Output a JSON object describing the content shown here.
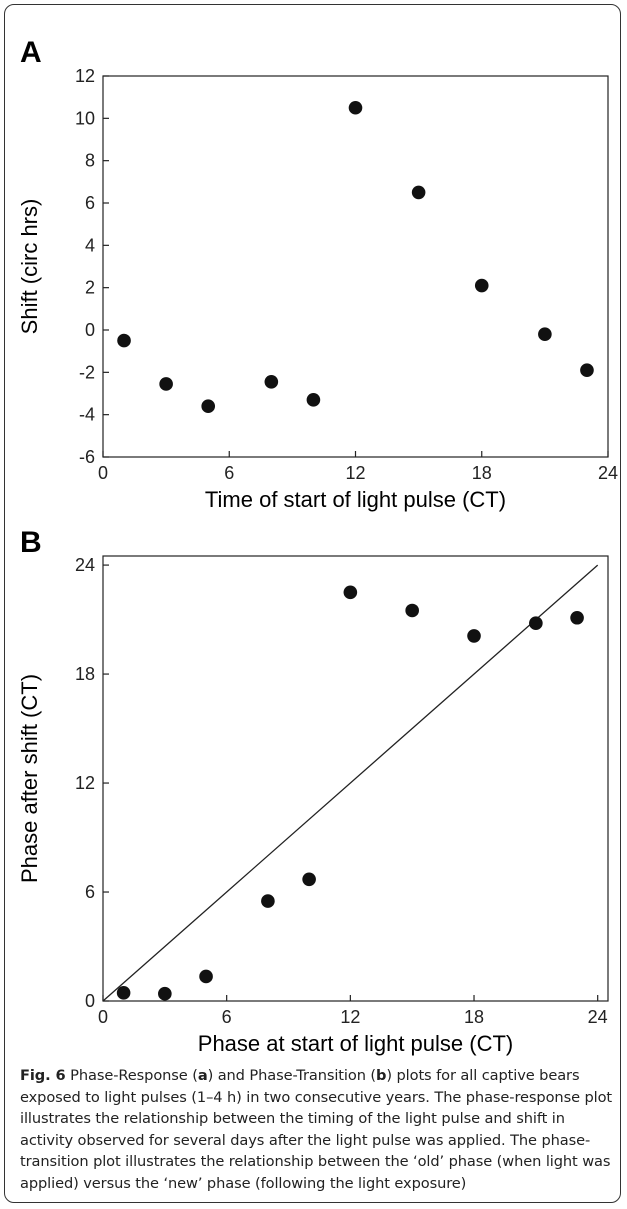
{
  "chart_data": [
    {
      "panel_label": "A",
      "type": "scatter",
      "xlabel": "Time of start of light pulse (CT)",
      "ylabel": "Shift (circ hrs)",
      "xlim": [
        0,
        24
      ],
      "ylim": [
        -6,
        12
      ],
      "xticks": [
        "0",
        "6",
        "12",
        "18",
        "24"
      ],
      "yticks": [
        "-6",
        "-4",
        "-2",
        "0",
        "2",
        "4",
        "6",
        "8",
        "10",
        "12"
      ],
      "grid": false,
      "points": [
        {
          "x": 1,
          "y": -0.5
        },
        {
          "x": 3,
          "y": -2.55
        },
        {
          "x": 5,
          "y": -3.6
        },
        {
          "x": 8,
          "y": -2.45
        },
        {
          "x": 10,
          "y": -3.3
        },
        {
          "x": 12,
          "y": 10.5
        },
        {
          "x": 15,
          "y": 6.5
        },
        {
          "x": 18,
          "y": 2.1
        },
        {
          "x": 21,
          "y": -0.2
        },
        {
          "x": 23,
          "y": -1.9
        }
      ]
    },
    {
      "panel_label": "B",
      "type": "scatter",
      "xlabel": "Phase at start of light pulse (CT)",
      "ylabel": "Phase after shift (CT)",
      "xlim": [
        0,
        24.5
      ],
      "ylim": [
        0,
        24.5
      ],
      "xticks": [
        "0",
        "6",
        "12",
        "18",
        "24"
      ],
      "yticks": [
        "0",
        "6",
        "12",
        "18",
        "24"
      ],
      "grid": false,
      "reference_line": {
        "from": [
          0,
          0
        ],
        "to": [
          24,
          24
        ]
      },
      "points": [
        {
          "x": 1,
          "y": 0.45
        },
        {
          "x": 3,
          "y": 0.4
        },
        {
          "x": 5,
          "y": 1.35
        },
        {
          "x": 8,
          "y": 5.5
        },
        {
          "x": 10,
          "y": 6.7
        },
        {
          "x": 12,
          "y": 22.5
        },
        {
          "x": 15,
          "y": 21.5
        },
        {
          "x": 18,
          "y": 20.1
        },
        {
          "x": 21,
          "y": 20.8
        },
        {
          "x": 23,
          "y": 21.1
        }
      ]
    }
  ],
  "caption": {
    "fig_label": "Fig. 6",
    "part1": " Phase-Response (",
    "ref_a": "a",
    "part2": ") and Phase-Transition (",
    "ref_b": "b",
    "part3": ") plots for all captive bears exposed to light pulses (1–4 h) in two consecutive years. The phase-response plot illustrates the relationship between the timing of the light pulse and shift in activity observed for several days after the light pulse was applied. The phase-transition plot illustrates the relationship between the ‘old’ phase (when light was applied) versus the ‘new’ phase (following the light exposure)"
  }
}
